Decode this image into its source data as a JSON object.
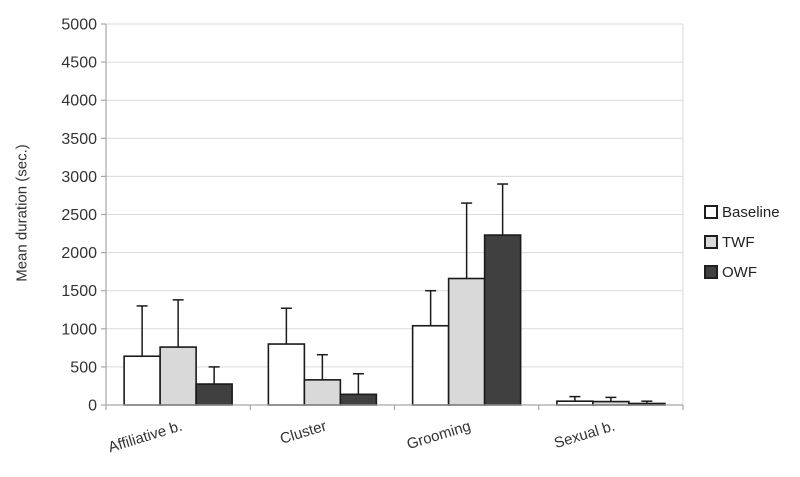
{
  "chart_data": {
    "type": "bar",
    "title": "",
    "xlabel": "",
    "ylabel": "Mean duration (sec.)",
    "ylim": [
      0,
      5000
    ],
    "ytick_step": 500,
    "grid": "horizontal",
    "legend_position": "right",
    "categories": [
      "Affiliative b.",
      "Cluster",
      "Grooming",
      "Sexual b."
    ],
    "series": [
      {
        "name": "Baseline",
        "color": "#ffffff",
        "values": [
          640,
          800,
          1040,
          50
        ],
        "error_plus": [
          660,
          470,
          460,
          60
        ]
      },
      {
        "name": "TWF",
        "color": "#d9d9d9",
        "values": [
          760,
          330,
          1660,
          45
        ],
        "error_plus": [
          620,
          330,
          990,
          55
        ]
      },
      {
        "name": "OWF",
        "color": "#404040",
        "values": [
          275,
          140,
          2230,
          20
        ],
        "error_plus": [
          225,
          270,
          670,
          30
        ]
      }
    ],
    "style": {
      "gridline_color": "#dadada",
      "axis_color": "#a6a6a6",
      "bar_border_color": "#1a1a1a",
      "error_bar_color": "#1a1a1a",
      "text_color": "#333333",
      "category_label_rotation_deg": -17
    }
  }
}
